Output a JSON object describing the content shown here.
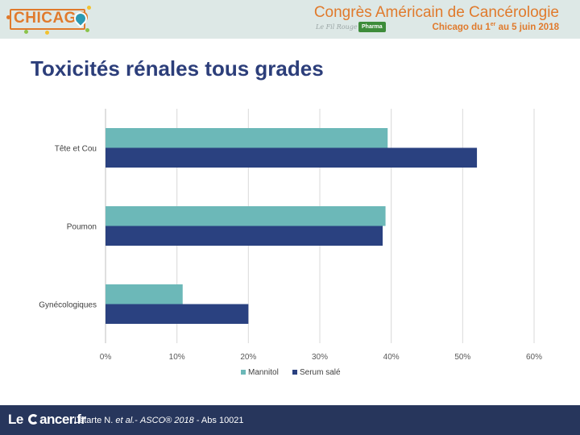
{
  "header": {
    "logo_text": "CHICAGO",
    "title": "Congrès Américain de Cancérologie",
    "subtitle_prefix": "Chicago du 1",
    "subtitle_sup": "er",
    "subtitle_suffix": " au 5 juin 2018",
    "fil_rouge": "Le Fil Rouge",
    "pharma_badge": "Pharma"
  },
  "slide": {
    "title": "Toxicités rénales tous grades"
  },
  "footer": {
    "logo_prefix": "Le ",
    "logo_suffix": "ancer.fr",
    "citation_author": "Letarte N. ",
    "citation_etal": "et al.",
    "citation_sep": "- ",
    "citation_journal": "ASCO® 2018",
    "citation_abs": " - Abs 10021"
  },
  "colors": {
    "mannitol": "#6cb8b8",
    "serum": "#2a4180",
    "title": "#2c3e7a",
    "header_bg": "#dde8e6",
    "footer_bg": "#27365c",
    "accent": "#e07a2c"
  },
  "chart_data": {
    "type": "bar",
    "orientation": "horizontal",
    "categories": [
      "Tête et Cou",
      "Poumon",
      "Gynécologiques"
    ],
    "series": [
      {
        "name": "Mannitol",
        "values": [
          39.5,
          39.2,
          10.8
        ]
      },
      {
        "name": "Serum salé",
        "values": [
          52.0,
          38.8,
          20.0
        ]
      }
    ],
    "xlim": [
      0,
      60
    ],
    "xticks": [
      "0%",
      "10%",
      "20%",
      "30%",
      "40%",
      "50%",
      "60%"
    ],
    "x_tick_values": [
      0,
      10,
      20,
      30,
      40,
      50,
      60
    ],
    "grid": true,
    "legend_position": "bottom",
    "title": "",
    "xlabel": "",
    "ylabel": ""
  }
}
